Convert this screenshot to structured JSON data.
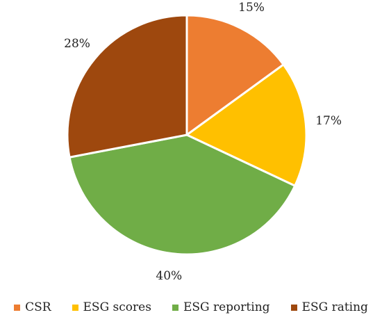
{
  "chart_data": {
    "type": "pie",
    "title": "",
    "categories": [
      "CSR",
      "ESG scores",
      "ESG reporting",
      "ESG rating"
    ],
    "values": [
      15,
      17,
      40,
      28
    ],
    "labels": [
      "15%",
      "17%",
      "40%",
      "28%"
    ],
    "colors": [
      "#ED7D31",
      "#FFC000",
      "#70AD47",
      "#9E480E"
    ],
    "start_angle": "12 o'clock",
    "direction": "clockwise",
    "legend": "bottom"
  }
}
